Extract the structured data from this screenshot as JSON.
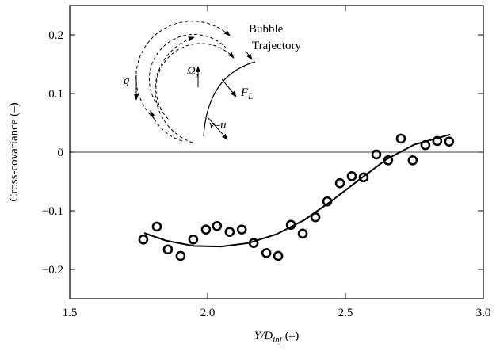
{
  "chart_data": {
    "type": "scatter",
    "xlabel": {
      "main": "Y/D",
      "sub": "inj",
      "unit": "(–)"
    },
    "ylabel": "Cross-covariance (–)",
    "xlim": [
      1.5,
      3.0
    ],
    "ylim": [
      -0.25,
      0.25
    ],
    "xticks": [
      1.5,
      {
        "value": 2,
        "label": "2.0"
      },
      2.5,
      {
        "value": 3,
        "label": "3.0"
      }
    ],
    "yticks": [
      {
        "value": -0.2,
        "label": "−0.2"
      },
      {
        "value": -0.1,
        "label": "−0.1"
      },
      0,
      0.1,
      0.2
    ],
    "hline": 0,
    "series": [
      {
        "kind": "points",
        "color": "#000000",
        "x": [
          1.767,
          1.816,
          1.856,
          1.902,
          1.948,
          1.994,
          2.034,
          2.08,
          2.124,
          2.167,
          2.213,
          2.256,
          2.302,
          2.345,
          2.391,
          2.434,
          2.48,
          2.523,
          2.566,
          2.612,
          2.655,
          2.701,
          2.744,
          2.79,
          2.833,
          2.876
        ],
        "values": [
          -0.149,
          -0.127,
          -0.166,
          -0.177,
          -0.149,
          -0.132,
          -0.126,
          -0.136,
          -0.132,
          -0.155,
          -0.172,
          -0.177,
          -0.124,
          -0.139,
          -0.111,
          -0.084,
          -0.053,
          -0.041,
          -0.043,
          -0.004,
          -0.014,
          0.023,
          -0.014,
          0.012,
          0.019,
          0.018
        ]
      },
      {
        "kind": "line",
        "color": "#000000",
        "x": [
          1.77,
          1.85,
          1.95,
          2.05,
          2.15,
          2.25,
          2.35,
          2.45,
          2.55,
          2.65,
          2.75,
          2.88
        ],
        "values": [
          -0.138,
          -0.151,
          -0.16,
          -0.161,
          -0.155,
          -0.14,
          -0.116,
          -0.083,
          -0.047,
          -0.012,
          0.013,
          0.03
        ]
      }
    ],
    "annotations": {
      "bubble": "Bubble",
      "trajectory": "Trajectory",
      "g": "g",
      "omega": {
        "main": "Ω",
        "sub": "x"
      },
      "lift": {
        "main": "F",
        "sub": "L"
      },
      "slip": "v–u"
    }
  }
}
